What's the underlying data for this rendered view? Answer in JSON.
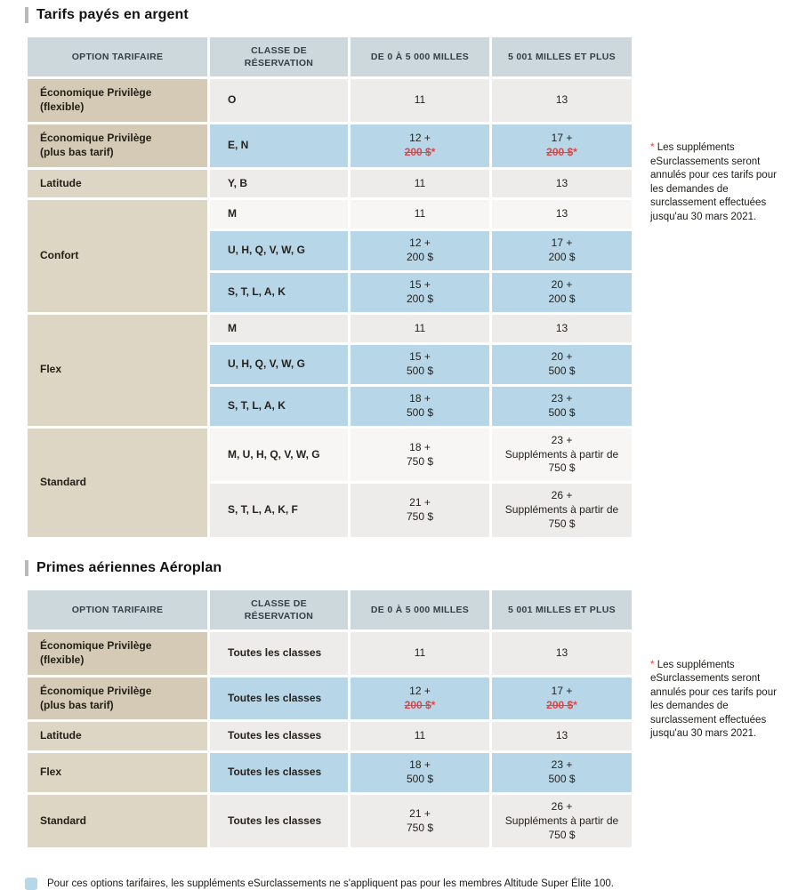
{
  "colors": {
    "header_bg": "#cdd8dc",
    "highlight_blue": "#b7d7e9",
    "beige_dark": "#d4cab6",
    "beige_light": "#ded6c5",
    "row_gray": "#edecea",
    "row_white": "#f7f6f4",
    "strike_red": "#e04443",
    "title_bar_gray": "#b9b9b9"
  },
  "tables": [
    {
      "title": "Tarifs payés en argent",
      "headers": [
        "OPTION TARIFAIRE",
        "CLASSE DE RÉSERVATION",
        "DE 0 À 5 000 MILLES",
        "5 001 MILLES ET PLUS"
      ],
      "note_asterisk": "*",
      "note_text": "Les suppléments eSurclassements seront annulés pour ces tarifs pour les demandes de surclassement effectuées jusqu'au 30 mars 2021.",
      "rows": [
        {
          "option": {
            "lines": [
              "Économique Privilège",
              "(flexible)"
            ],
            "span": 1,
            "shade": "dark"
          },
          "classes": "O",
          "bg": "mid",
          "near": {
            "lines": [
              "11"
            ]
          },
          "far": {
            "lines": [
              "13"
            ]
          }
        },
        {
          "option": {
            "lines": [
              "Économique Privilège",
              "(plus bas tarif)"
            ],
            "span": 1,
            "shade": "dark"
          },
          "classes": "E, N",
          "bg": "blue",
          "near": {
            "lines": [
              "12 +",
              "200 $*"
            ],
            "strike_last": true
          },
          "far": {
            "lines": [
              "17 +",
              "200 $*"
            ],
            "strike_last": true
          }
        },
        {
          "option": {
            "lines": [
              "Latitude"
            ],
            "span": 1,
            "shade": "light"
          },
          "classes": "Y, B",
          "bg": "mid",
          "near": {
            "lines": [
              "11"
            ]
          },
          "far": {
            "lines": [
              "13"
            ]
          }
        },
        {
          "option": {
            "lines": [
              "Confort"
            ],
            "span": 3,
            "shade": "light"
          },
          "classes": "M",
          "bg": "light",
          "near": {
            "lines": [
              "11"
            ]
          },
          "far": {
            "lines": [
              "13"
            ]
          }
        },
        {
          "option": null,
          "classes": "U, H, Q, V, W, G",
          "bg": "blue",
          "near": {
            "lines": [
              "12 +",
              "200 $"
            ]
          },
          "far": {
            "lines": [
              "17 +",
              "200 $"
            ]
          }
        },
        {
          "option": null,
          "classes": "S, T, L, A, K",
          "bg": "blue",
          "near": {
            "lines": [
              "15 +",
              "200 $"
            ]
          },
          "far": {
            "lines": [
              "20 +",
              "200 $"
            ]
          }
        },
        {
          "option": {
            "lines": [
              "Flex"
            ],
            "span": 3,
            "shade": "light"
          },
          "classes": "M",
          "bg": "mid",
          "near": {
            "lines": [
              "11"
            ]
          },
          "far": {
            "lines": [
              "13"
            ]
          }
        },
        {
          "option": null,
          "classes": "U, H, Q, V, W, G",
          "bg": "blue",
          "near": {
            "lines": [
              "15 +",
              "500 $"
            ]
          },
          "far": {
            "lines": [
              "20 +",
              "500 $"
            ]
          }
        },
        {
          "option": null,
          "classes": "S, T, L, A, K",
          "bg": "blue",
          "near": {
            "lines": [
              "18 +",
              "500 $"
            ]
          },
          "far": {
            "lines": [
              "23 +",
              "500 $"
            ]
          }
        },
        {
          "option": {
            "lines": [
              "Standard"
            ],
            "span": 2,
            "shade": "light"
          },
          "classes": "M, U, H, Q, V, W, G",
          "bg": "light",
          "near": {
            "lines": [
              "18 +",
              "750 $"
            ]
          },
          "far": {
            "lines": [
              "23 +",
              "Suppléments à partir de",
              "750 $"
            ]
          }
        },
        {
          "option": null,
          "classes": "S, T, L, A, K, F",
          "bg": "mid",
          "near": {
            "lines": [
              "21 +",
              "750 $"
            ]
          },
          "far": {
            "lines": [
              "26 +",
              "Suppléments à partir de",
              "750 $"
            ]
          }
        }
      ]
    },
    {
      "title": "Primes aériennes Aéroplan",
      "headers": [
        "OPTION TARIFAIRE",
        "CLASSE DE RÉSERVATION",
        "DE 0 À 5 000 MILLES",
        "5 001 MILLES ET PLUS"
      ],
      "note_asterisk": "*",
      "note_text": "Les suppléments eSurclassements seront annulés pour ces tarifs pour les demandes de surclassement effectuées jusqu'au 30 mars 2021.",
      "rows": [
        {
          "option": {
            "lines": [
              "Économique Privilège",
              "(flexible)"
            ],
            "span": 1,
            "shade": "dark"
          },
          "classes": "Toutes les classes",
          "bg": "mid",
          "near": {
            "lines": [
              "11"
            ]
          },
          "far": {
            "lines": [
              "13"
            ]
          }
        },
        {
          "option": {
            "lines": [
              "Économique Privilège",
              "(plus bas tarif)"
            ],
            "span": 1,
            "shade": "dark"
          },
          "classes": "Toutes les classes",
          "bg": "blue",
          "near": {
            "lines": [
              "12 +",
              "200 $*"
            ],
            "strike_last": true
          },
          "far": {
            "lines": [
              "17 +",
              "200 $*"
            ],
            "strike_last": true
          }
        },
        {
          "option": {
            "lines": [
              "Latitude"
            ],
            "span": 1,
            "shade": "light"
          },
          "classes": "Toutes les classes",
          "bg": "mid",
          "near": {
            "lines": [
              "11"
            ]
          },
          "far": {
            "lines": [
              "13"
            ]
          }
        },
        {
          "option": {
            "lines": [
              "Flex"
            ],
            "span": 1,
            "shade": "light"
          },
          "classes": "Toutes les classes",
          "bg": "blue",
          "near": {
            "lines": [
              "18 +",
              "500 $"
            ]
          },
          "far": {
            "lines": [
              "23 +",
              "500 $"
            ]
          }
        },
        {
          "option": {
            "lines": [
              "Standard"
            ],
            "span": 1,
            "shade": "light"
          },
          "classes": "Toutes les classes",
          "bg": "mid",
          "near": {
            "lines": [
              "21 +",
              "750 $"
            ]
          },
          "far": {
            "lines": [
              "26 +",
              "Suppléments à partir de",
              "750 $"
            ]
          }
        }
      ]
    }
  ],
  "footer": {
    "legend_text": "Pour ces options tarifaires, les suppléments eSurclassements ne s'appliquent pas pour les membres Altitude Super Élite 100."
  }
}
